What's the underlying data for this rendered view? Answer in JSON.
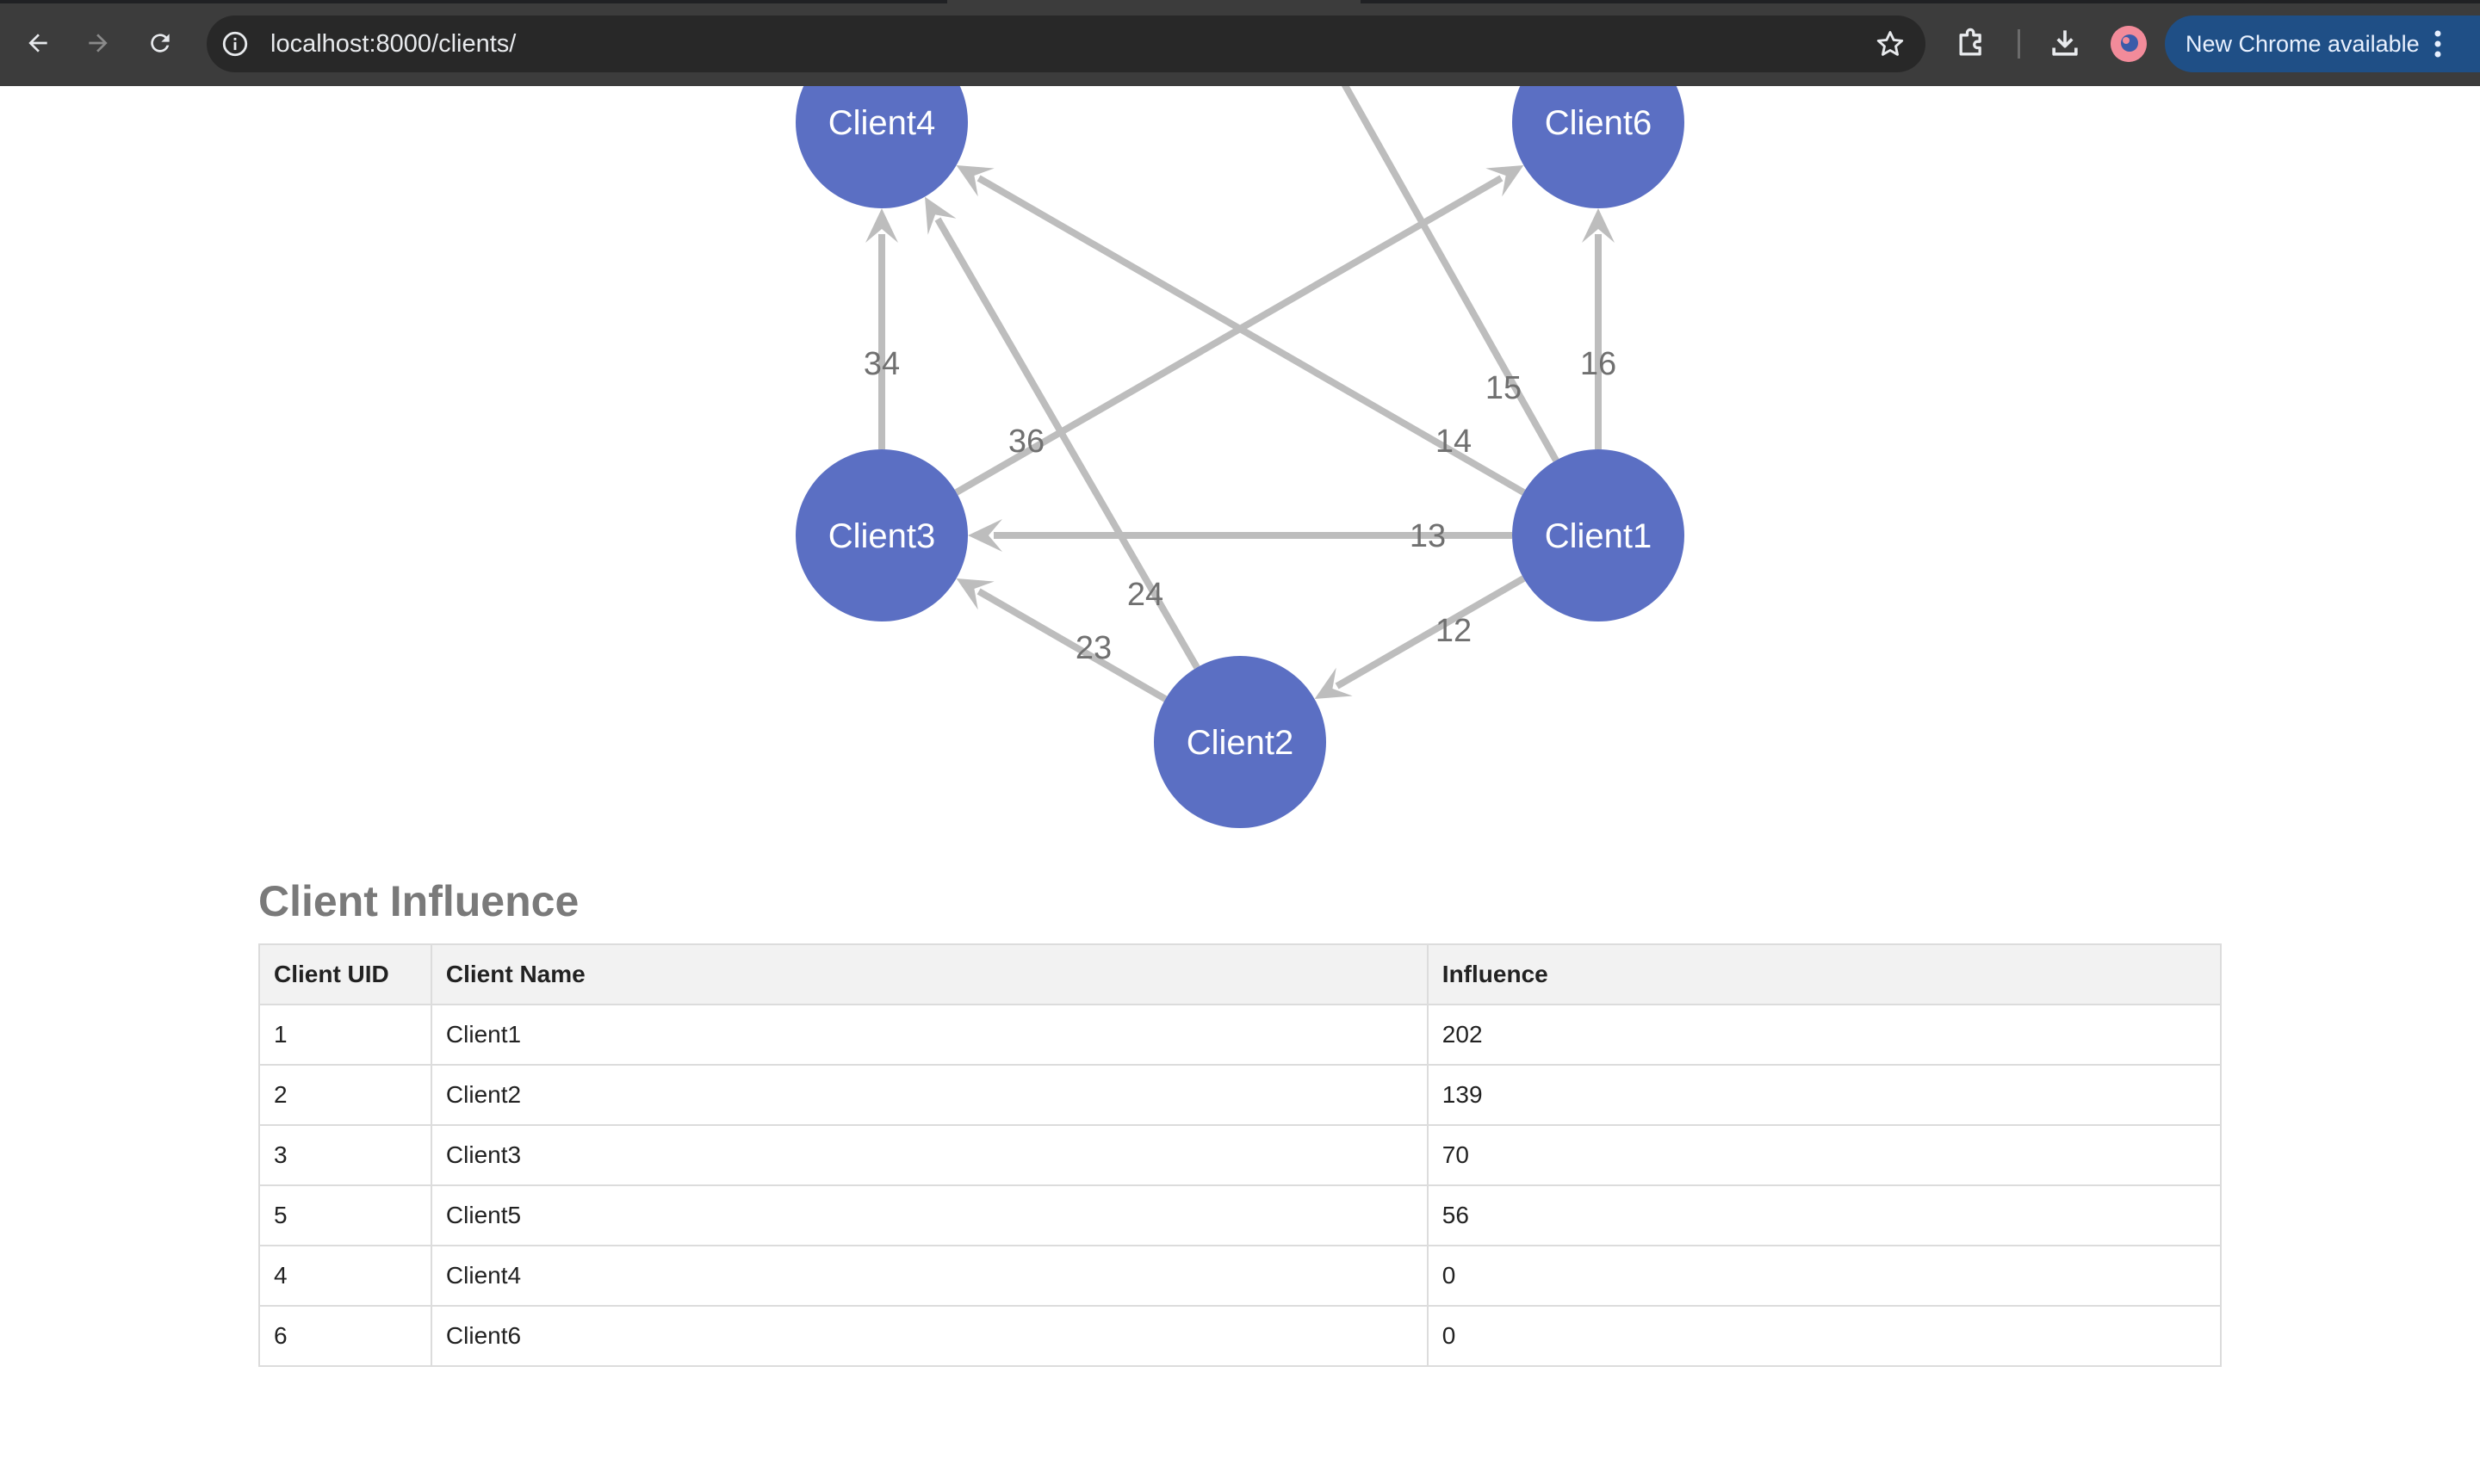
{
  "browser": {
    "url": "localhost:8000/clients/",
    "update_button_label": "New Chrome available",
    "icons": {
      "back": "back-arrow-icon",
      "forward": "forward-arrow-icon",
      "reload": "reload-icon",
      "site_info": "info-icon",
      "bookmark": "star-icon",
      "extensions": "puzzle-icon",
      "downloads": "download-icon",
      "menu": "kebab-menu-icon"
    }
  },
  "graph": {
    "node_color": "#5b6fc3",
    "edge_color": "#bdbdbd",
    "nodes": [
      {
        "id": "n4",
        "label": "Client4"
      },
      {
        "id": "n6",
        "label": "Client6"
      },
      {
        "id": "n3",
        "label": "Client3"
      },
      {
        "id": "n1",
        "label": "Client1"
      },
      {
        "id": "n2",
        "label": "Client2"
      }
    ],
    "edges": [
      {
        "from": "Client3",
        "to": "Client4",
        "label": "34"
      },
      {
        "from": "Client3",
        "to": "Client6",
        "label": "36"
      },
      {
        "from": "Client1",
        "to": "Client4",
        "label": "14"
      },
      {
        "from": "Client1",
        "to": "Client6",
        "label": "16"
      },
      {
        "from": "Client1",
        "to": "Client3",
        "label": "13"
      },
      {
        "from": "Client1",
        "to": "Client2",
        "label": "12"
      },
      {
        "from": "Client2",
        "to": "Client3",
        "label": "23"
      },
      {
        "from": "Client2",
        "to": "Client4",
        "label": "24"
      },
      {
        "from": "Client1",
        "to": "",
        "label": "15"
      }
    ]
  },
  "influence": {
    "title": "Client Influence",
    "columns": [
      "Client UID",
      "Client Name",
      "Influence"
    ],
    "rows": [
      [
        "1",
        "Client1",
        "202"
      ],
      [
        "2",
        "Client2",
        "139"
      ],
      [
        "3",
        "Client3",
        "70"
      ],
      [
        "5",
        "Client5",
        "56"
      ],
      [
        "4",
        "Client4",
        "0"
      ],
      [
        "6",
        "Client6",
        "0"
      ]
    ]
  }
}
